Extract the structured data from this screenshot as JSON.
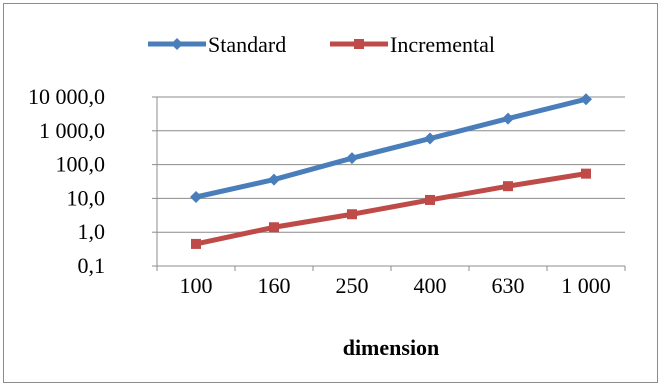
{
  "chart_data": {
    "type": "line",
    "title": "",
    "xlabel": "dimension",
    "ylabel": "",
    "yscale": "log",
    "ylim": [
      0.1,
      10000
    ],
    "categories": [
      "100",
      "160",
      "250",
      "400",
      "630",
      "1 000"
    ],
    "y_ticks": [
      {
        "value": 0.1,
        "label": "0,1"
      },
      {
        "value": 1,
        "label": "1,0"
      },
      {
        "value": 10,
        "label": "10,0"
      },
      {
        "value": 100,
        "label": "100,0"
      },
      {
        "value": 1000,
        "label": "1 000,0"
      },
      {
        "value": 10000,
        "label": "10 000,0"
      }
    ],
    "grid": "horizontal",
    "legend_position": "top",
    "series": [
      {
        "name": "Standard",
        "color": "#4a7ebb",
        "marker": "diamond",
        "values": [
          11,
          36,
          155,
          590,
          2300,
          8600
        ]
      },
      {
        "name": "Incremental",
        "color": "#be4b48",
        "marker": "square",
        "values": [
          0.45,
          1.4,
          3.4,
          9,
          23,
          54
        ]
      }
    ]
  }
}
